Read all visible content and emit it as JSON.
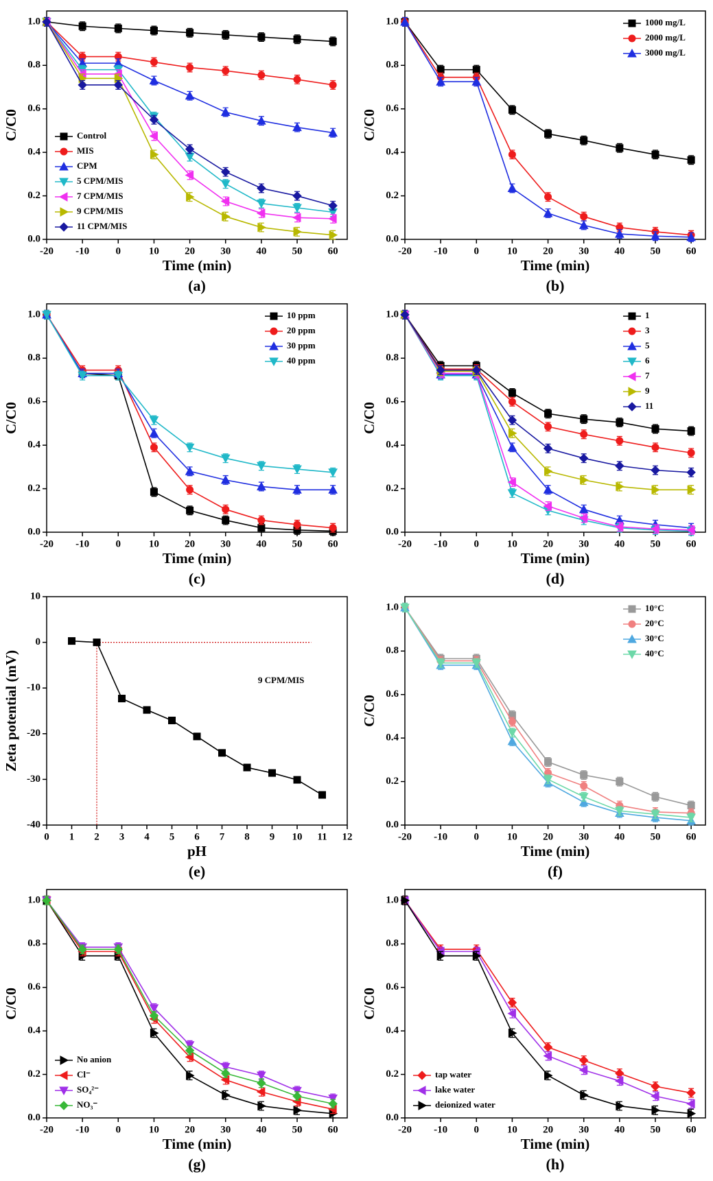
{
  "chart_data": [
    {
      "type": "line",
      "caption": "(a)",
      "x_label": "Time (min)",
      "y_label": "C/C0",
      "x": [
        -20,
        -10,
        0,
        10,
        20,
        30,
        40,
        50,
        60
      ],
      "xlim": [
        -20,
        64
      ],
      "ylim": [
        0,
        1.05
      ],
      "xticks": [
        -20,
        -10,
        0,
        10,
        20,
        30,
        40,
        50,
        60
      ],
      "yticks": [
        {
          "value": 0,
          "label": "0.0"
        },
        0.2,
        0.4,
        0.6,
        0.8,
        {
          "value": 1,
          "label": "1.0"
        }
      ],
      "error": 0.02,
      "legend": "lower left",
      "series": [
        {
          "name": "Control",
          "color": "#000000",
          "marker": "square",
          "values": [
            1,
            0.98,
            0.97,
            0.96,
            0.95,
            0.94,
            0.93,
            0.92,
            0.91
          ]
        },
        {
          "name": "MIS",
          "color": "#ee1c1c",
          "marker": "circle",
          "values": [
            1,
            0.84,
            0.84,
            0.815,
            0.79,
            0.775,
            0.755,
            0.735,
            0.71
          ]
        },
        {
          "name": "CPM",
          "color": "#1f2ee0",
          "marker": "triangle-up",
          "values": [
            1,
            0.81,
            0.81,
            0.73,
            0.66,
            0.585,
            0.545,
            0.515,
            0.49
          ]
        },
        {
          "name": "5 CPM/MIS",
          "color": "#20b8c8",
          "marker": "triangle-down",
          "values": [
            1,
            0.78,
            0.78,
            0.565,
            0.38,
            0.255,
            0.165,
            0.145,
            0.125
          ]
        },
        {
          "name": "7 CPM/MIS",
          "color": "#f030f0",
          "marker": "triangle-left",
          "values": [
            1,
            0.76,
            0.76,
            0.475,
            0.295,
            0.175,
            0.12,
            0.1,
            0.095
          ]
        },
        {
          "name": "9 CPM/MIS",
          "color": "#b8b800",
          "marker": "triangle-right",
          "values": [
            1,
            0.74,
            0.74,
            0.39,
            0.195,
            0.105,
            0.055,
            0.035,
            0.02
          ]
        },
        {
          "name": "11 CPM/MIS",
          "color": "#1818a0",
          "marker": "diamond",
          "values": [
            1,
            0.71,
            0.71,
            0.55,
            0.415,
            0.31,
            0.235,
            0.2,
            0.155
          ]
        }
      ]
    },
    {
      "type": "line",
      "caption": "(b)",
      "x_label": "Time (min)",
      "y_label": "C/C0",
      "x": [
        -20,
        -10,
        0,
        10,
        20,
        30,
        40,
        50,
        60
      ],
      "xlim": [
        -20,
        64
      ],
      "ylim": [
        0,
        1.05
      ],
      "xticks": [
        -20,
        -10,
        0,
        10,
        20,
        30,
        40,
        50,
        60
      ],
      "yticks": [
        {
          "value": 0,
          "label": "0.0"
        },
        0.2,
        0.4,
        0.6,
        0.8,
        {
          "value": 1,
          "label": "1.0"
        }
      ],
      "error": 0.02,
      "legend": "upper right",
      "series": [
        {
          "name": "1000 mg/L",
          "color": "#000000",
          "marker": "square",
          "values": [
            1,
            0.78,
            0.78,
            0.595,
            0.485,
            0.455,
            0.42,
            0.39,
            0.365
          ]
        },
        {
          "name": "2000 mg/L",
          "color": "#ee1c1c",
          "marker": "circle",
          "values": [
            1,
            0.745,
            0.745,
            0.39,
            0.195,
            0.105,
            0.055,
            0.035,
            0.02
          ]
        },
        {
          "name": "3000 mg/L",
          "color": "#1f2ee0",
          "marker": "triangle-up",
          "values": [
            1,
            0.725,
            0.725,
            0.235,
            0.12,
            0.065,
            0.025,
            0.015,
            0.01
          ]
        }
      ]
    },
    {
      "type": "line",
      "caption": "(c)",
      "x_label": "Time (min)",
      "y_label": "C/C0",
      "x": [
        -20,
        -10,
        0,
        10,
        20,
        30,
        40,
        50,
        60
      ],
      "xlim": [
        -20,
        64
      ],
      "ylim": [
        0,
        1.05
      ],
      "xticks": [
        -20,
        -10,
        0,
        10,
        20,
        30,
        40,
        50,
        60
      ],
      "yticks": [
        {
          "value": 0,
          "label": "0.0"
        },
        0.2,
        0.4,
        0.6,
        0.8,
        {
          "value": 1,
          "label": "1.0"
        }
      ],
      "error": 0.02,
      "legend": "upper right",
      "series": [
        {
          "name": "10 ppm",
          "color": "#000000",
          "marker": "square",
          "values": [
            1,
            0.73,
            0.72,
            0.185,
            0.1,
            0.055,
            0.02,
            0.01,
            0.005
          ]
        },
        {
          "name": "20 ppm",
          "color": "#ee1c1c",
          "marker": "circle",
          "values": [
            1,
            0.745,
            0.745,
            0.39,
            0.195,
            0.105,
            0.055,
            0.035,
            0.02
          ]
        },
        {
          "name": "30 ppm",
          "color": "#1f2ee0",
          "marker": "triangle-up",
          "values": [
            1,
            0.73,
            0.73,
            0.455,
            0.28,
            0.24,
            0.21,
            0.195,
            0.195
          ]
        },
        {
          "name": "40 ppm",
          "color": "#20b8c8",
          "marker": "triangle-down",
          "values": [
            1,
            0.72,
            0.72,
            0.515,
            0.39,
            0.34,
            0.305,
            0.29,
            0.275
          ]
        }
      ]
    },
    {
      "type": "line",
      "caption": "(d)",
      "x_label": "Time (min)",
      "y_label": "C/C0",
      "x": [
        -20,
        -10,
        0,
        10,
        20,
        30,
        40,
        50,
        60
      ],
      "xlim": [
        -20,
        64
      ],
      "ylim": [
        0,
        1.05
      ],
      "xticks": [
        -20,
        -10,
        0,
        10,
        20,
        30,
        40,
        50,
        60
      ],
      "yticks": [
        {
          "value": 0,
          "label": "0.0"
        },
        0.2,
        0.4,
        0.6,
        0.8,
        {
          "value": 1,
          "label": "1.0"
        }
      ],
      "error": 0.02,
      "legend": "upper right",
      "series": [
        {
          "name": "1",
          "color": "#000000",
          "marker": "square",
          "values": [
            1,
            0.765,
            0.765,
            0.64,
            0.545,
            0.52,
            0.505,
            0.475,
            0.465
          ]
        },
        {
          "name": "3",
          "color": "#ee1c1c",
          "marker": "circle",
          "values": [
            1,
            0.75,
            0.75,
            0.6,
            0.485,
            0.45,
            0.42,
            0.39,
            0.365
          ]
        },
        {
          "name": "5",
          "color": "#1f2ee0",
          "marker": "triangle-up",
          "values": [
            1,
            0.725,
            0.725,
            0.39,
            0.195,
            0.105,
            0.055,
            0.035,
            0.02
          ]
        },
        {
          "name": "6",
          "color": "#20b8c8",
          "marker": "triangle-down",
          "values": [
            1,
            0.72,
            0.72,
            0.18,
            0.1,
            0.055,
            0.02,
            0.01,
            0.005
          ]
        },
        {
          "name": "7",
          "color": "#f030f0",
          "marker": "triangle-left",
          "values": [
            1,
            0.73,
            0.73,
            0.23,
            0.12,
            0.065,
            0.025,
            0.015,
            0.01
          ]
        },
        {
          "name": "9",
          "color": "#b8b800",
          "marker": "triangle-right",
          "values": [
            1,
            0.74,
            0.74,
            0.455,
            0.28,
            0.24,
            0.21,
            0.195,
            0.195
          ]
        },
        {
          "name": "11",
          "color": "#1818a0",
          "marker": "diamond",
          "values": [
            1,
            0.745,
            0.745,
            0.515,
            0.385,
            0.34,
            0.305,
            0.285,
            0.275
          ]
        }
      ]
    },
    {
      "type": "line",
      "caption": "(e)",
      "x_label": "pH",
      "y_label": "Zeta potential (mV)",
      "x": [
        1,
        2,
        3,
        4,
        5,
        6,
        7,
        8,
        9,
        10,
        11
      ],
      "xlim": [
        0,
        12
      ],
      "ylim": [
        -40,
        10
      ],
      "xticks": [
        0,
        1,
        2,
        3,
        4,
        5,
        6,
        7,
        8,
        9,
        10,
        11,
        12
      ],
      "yticks": [
        -40,
        -30,
        -20,
        -10,
        0,
        10
      ],
      "annotation": "9 CPM/MIS",
      "hline": 0,
      "vline": 2,
      "ref_color": "#d01010",
      "series": [
        {
          "name": "9 CPM/MIS",
          "color": "#000000",
          "marker": "square",
          "values": [
            0.3,
            0,
            -12.3,
            -14.8,
            -17.1,
            -20.6,
            -24.2,
            -27.4,
            -28.6,
            -30.1,
            -33.4
          ]
        }
      ]
    },
    {
      "type": "line",
      "caption": "(f)",
      "x_label": "Time (min)",
      "y_label": "C/C0",
      "x": [
        -20,
        -10,
        0,
        10,
        20,
        30,
        40,
        50,
        60
      ],
      "xlim": [
        -20,
        64
      ],
      "ylim": [
        0,
        1.05
      ],
      "xticks": [
        -20,
        -10,
        0,
        10,
        20,
        30,
        40,
        50,
        60
      ],
      "yticks": [
        {
          "value": 0,
          "label": "0.0"
        },
        0.2,
        0.4,
        0.6,
        0.8,
        {
          "value": 1,
          "label": "1.0"
        }
      ],
      "error": 0.02,
      "legend": "upper right",
      "series": [
        {
          "name": "10°C",
          "color": "#999999",
          "marker": "square",
          "values": [
            1,
            0.765,
            0.765,
            0.505,
            0.29,
            0.23,
            0.2,
            0.13,
            0.09
          ]
        },
        {
          "name": "20°C",
          "color": "#f08080",
          "marker": "circle",
          "values": [
            1,
            0.755,
            0.755,
            0.475,
            0.24,
            0.18,
            0.09,
            0.06,
            0.055
          ]
        },
        {
          "name": "30°C",
          "color": "#4fa8e0",
          "marker": "triangle-up",
          "values": [
            1,
            0.735,
            0.735,
            0.385,
            0.195,
            0.105,
            0.055,
            0.035,
            0.02
          ]
        },
        {
          "name": "40°C",
          "color": "#6cd8a8",
          "marker": "triangle-down",
          "values": [
            1,
            0.745,
            0.745,
            0.425,
            0.21,
            0.13,
            0.065,
            0.05,
            0.035
          ]
        }
      ]
    },
    {
      "type": "line",
      "caption": "(g)",
      "x_label": "Time (min)",
      "y_label": "C/C0",
      "x": [
        -20,
        -10,
        0,
        10,
        20,
        30,
        40,
        50,
        60
      ],
      "xlim": [
        -20,
        64
      ],
      "ylim": [
        0,
        1.05
      ],
      "xticks": [
        -20,
        -10,
        0,
        10,
        20,
        30,
        40,
        50,
        60
      ],
      "yticks": [
        {
          "value": 0,
          "label": "0.0"
        },
        0.2,
        0.4,
        0.6,
        0.8,
        {
          "value": 1,
          "label": "1.0"
        }
      ],
      "error": 0.02,
      "legend": "lower left",
      "series": [
        {
          "name": "No anion",
          "color": "#000000",
          "marker": "triangle-right",
          "values": [
            1,
            0.745,
            0.745,
            0.39,
            0.195,
            0.105,
            0.055,
            0.035,
            0.02
          ]
        },
        {
          "name": "Cl⁻",
          "color": "#ee1c1c",
          "marker": "triangle-left",
          "values": [
            1,
            0.765,
            0.765,
            0.455,
            0.28,
            0.175,
            0.12,
            0.075,
            0.04
          ]
        },
        {
          "name": "SO₄²⁻",
          "color": "#a030e8",
          "marker": "triangle-down",
          "values": [
            1,
            0.785,
            0.785,
            0.505,
            0.335,
            0.235,
            0.195,
            0.125,
            0.09
          ]
        },
        {
          "name": "NO₃⁻",
          "color": "#38b838",
          "marker": "diamond",
          "values": [
            1,
            0.775,
            0.775,
            0.47,
            0.31,
            0.205,
            0.16,
            0.1,
            0.065
          ]
        }
      ]
    },
    {
      "type": "line",
      "caption": "(h)",
      "x_label": "Time (min)",
      "y_label": "C/C0",
      "x": [
        -20,
        -10,
        0,
        10,
        20,
        30,
        40,
        50,
        60
      ],
      "xlim": [
        -20,
        64
      ],
      "ylim": [
        0,
        1.05
      ],
      "xticks": [
        -20,
        -10,
        0,
        10,
        20,
        30,
        40,
        50,
        60
      ],
      "yticks": [
        {
          "value": 0,
          "label": "0.0"
        },
        0.2,
        0.4,
        0.6,
        0.8,
        {
          "value": 1,
          "label": "1.0"
        }
      ],
      "error": 0.02,
      "legend": "lower left",
      "series": [
        {
          "name": "tap water",
          "color": "#ee1c1c",
          "marker": "diamond",
          "values": [
            1,
            0.775,
            0.775,
            0.53,
            0.325,
            0.265,
            0.205,
            0.145,
            0.115
          ]
        },
        {
          "name": "lake water",
          "color": "#a030e8",
          "marker": "triangle-left",
          "values": [
            1,
            0.765,
            0.765,
            0.48,
            0.285,
            0.22,
            0.17,
            0.1,
            0.065
          ]
        },
        {
          "name": "deionized water",
          "color": "#000000",
          "marker": "triangle-right",
          "values": [
            1,
            0.745,
            0.745,
            0.39,
            0.195,
            0.105,
            0.055,
            0.035,
            0.02
          ]
        }
      ]
    }
  ]
}
